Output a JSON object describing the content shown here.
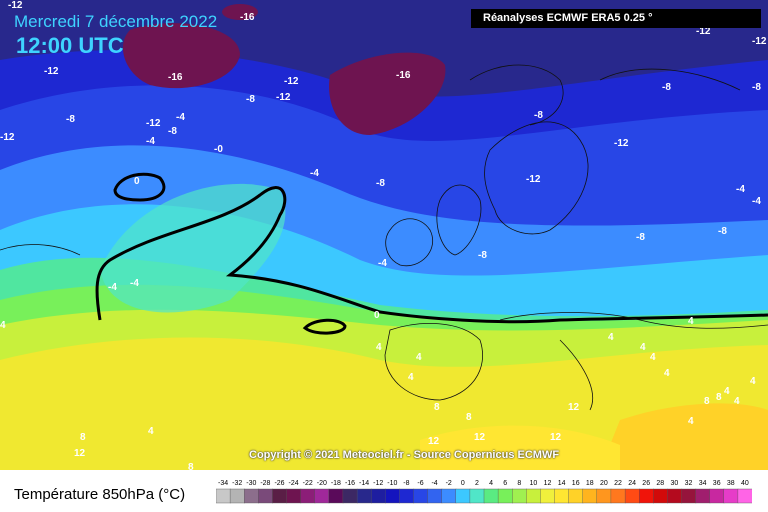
{
  "header": {
    "date": "Mercredi 7 décembre 2022",
    "time": "12:00 UTC",
    "source": "Réanalyses ECMWF ERA5 0.25 °"
  },
  "footer": {
    "copyright": "Copyright © 2021 Meteociel.fr - Source Copernicus ECMWF",
    "legend_title": "Température 850hPa (°C)"
  },
  "legend": {
    "ticks": [
      "-34",
      "-32",
      "-30",
      "-28",
      "-26",
      "-24",
      "-22",
      "-20",
      "-18",
      "-16",
      "-14",
      "-12",
      "-10",
      "-8",
      "-6",
      "-4",
      "-2",
      "0",
      "2",
      "4",
      "6",
      "8",
      "10",
      "12",
      "14",
      "16",
      "18",
      "20",
      "22",
      "24",
      "26",
      "28",
      "30",
      "32",
      "34",
      "36",
      "38",
      "40"
    ],
    "colors": [
      "#c8c8c8",
      "#b4b4b4",
      "#8c6e8c",
      "#7a4a7a",
      "#5a1e46",
      "#6e1450",
      "#8c1e78",
      "#a0289a",
      "#5a0a5a",
      "#3c2864",
      "#28288c",
      "#1e1ea0",
      "#1414be",
      "#1e28d2",
      "#2846e6",
      "#3264f0",
      "#3c8cff",
      "#3cc8ff",
      "#50e6c8",
      "#5aeb82",
      "#78f05a",
      "#a0f050",
      "#c8f03c",
      "#f0f03c",
      "#ffe632",
      "#ffd228",
      "#ffb41e",
      "#ff961e",
      "#ff781e",
      "#ff4b14",
      "#f0140a",
      "#d20a0a",
      "#b40a1e",
      "#96143c",
      "#a01e6e",
      "#c828a0",
      "#e63cc8",
      "#ff64e6"
    ]
  },
  "map": {
    "labels": [
      "-12",
      "-16",
      "-12",
      "-16",
      "-12",
      "-8",
      "-8",
      "-12",
      "-12",
      "-8",
      "-16",
      "-8",
      "-12",
      "-12",
      "-12",
      "-8",
      "-4",
      "-4",
      "-8",
      "-12",
      "-8",
      "-0",
      "-12",
      "-4",
      "-8",
      "-4",
      "-4",
      "0",
      "-4",
      "-4",
      "-4",
      "-8",
      "-8",
      "0",
      "4",
      "4",
      "4",
      "4",
      "4",
      "4",
      "4",
      "4",
      "8",
      "8",
      "8",
      "8",
      "12",
      "12",
      "12",
      "12",
      "8",
      "4",
      "4",
      "12",
      "8",
      "4",
      "4",
      "4",
      "4"
    ]
  }
}
